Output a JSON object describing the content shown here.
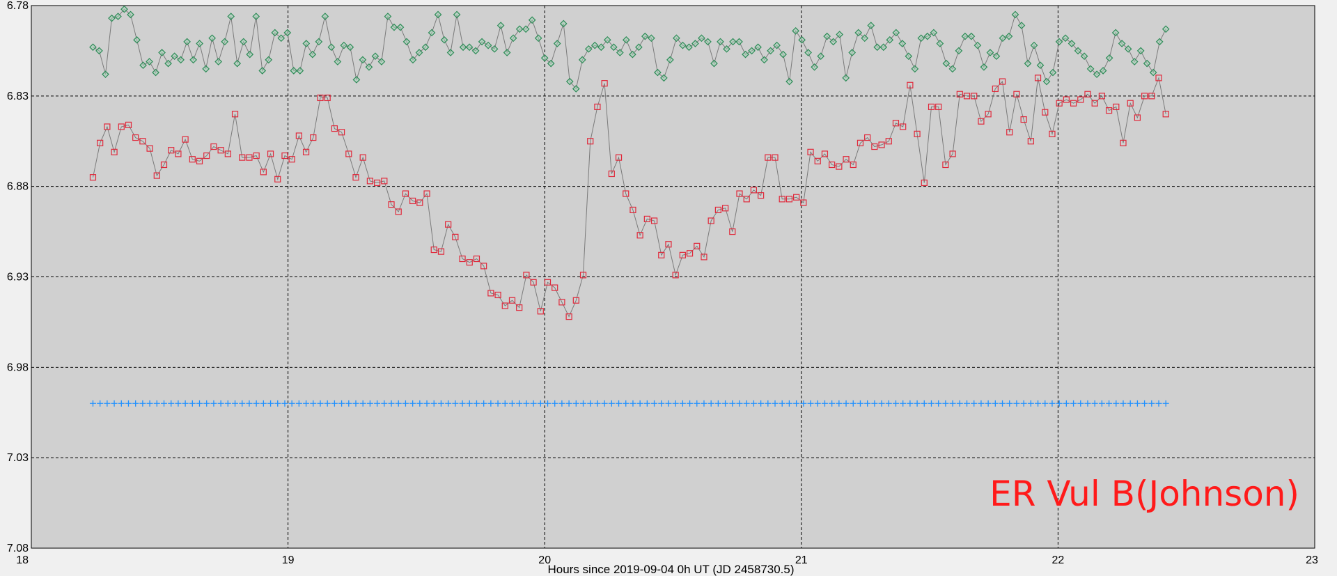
{
  "chart_data": {
    "type": "scatter",
    "title": "",
    "xlabel": "Hours since 2019-09-04 0h UT (JD 2458730.5)",
    "ylabel": "",
    "annotation": "ER Vul B(Johnson)",
    "xlim": [
      18,
      23
    ],
    "ylim": [
      6.78,
      7.08
    ],
    "y_inverted": true,
    "grid": true,
    "x_ticks": [
      "18",
      "19",
      "20",
      "21",
      "22",
      "23"
    ],
    "y_ticks": [
      "6.78",
      "6.83",
      "6.88",
      "6.93",
      "6.98",
      "7.03",
      "7.08"
    ],
    "colors": {
      "plot_background": "#d0d0d0",
      "frame_background": "#f0f0f0",
      "grid": "#000000",
      "connector": "#7a7a7a",
      "target_marker": "#e0283a",
      "check_marker": "#2e8b57",
      "baseline_marker": "#1e90ff",
      "annotation": "#ff1a1a"
    },
    "series": [
      {
        "marker": "diamond",
        "color": "#2e8b57",
        "connected": true,
        "x_range": [
          18.24,
          22.42
        ],
        "values": [
          6.803,
          6.805,
          6.818,
          6.787,
          6.786,
          6.782,
          6.785,
          6.799,
          6.813,
          6.811,
          6.817,
          6.806,
          6.812,
          6.808,
          6.81,
          6.8,
          6.81,
          6.801,
          6.815,
          6.798,
          6.811,
          6.8,
          6.786,
          6.812,
          6.8,
          6.807,
          6.786,
          6.816,
          6.81,
          6.795,
          6.798,
          6.795,
          6.816,
          6.816,
          6.801,
          6.807,
          6.8,
          6.786,
          6.803,
          6.811,
          6.802,
          6.803,
          6.821,
          6.81,
          6.814,
          6.808,
          6.811,
          6.786,
          6.792,
          6.792,
          6.8,
          6.81,
          6.806,
          6.803,
          6.795,
          6.785,
          6.799,
          6.806,
          6.785,
          6.803,
          6.803,
          6.805,
          6.8,
          6.802,
          6.804,
          6.791,
          6.806,
          6.798,
          6.793,
          6.793,
          6.788,
          6.798,
          6.809,
          6.812,
          6.801,
          6.79,
          6.822,
          6.826,
          6.81,
          6.804,
          6.802,
          6.803,
          6.799,
          6.803,
          6.806,
          6.799,
          6.807,
          6.803,
          6.797,
          6.798,
          6.817,
          6.82,
          6.81,
          6.798,
          6.802,
          6.803,
          6.801,
          6.798,
          6.8,
          6.812,
          6.8,
          6.804,
          6.8,
          6.8,
          6.807,
          6.805,
          6.803,
          6.81,
          6.805,
          6.802,
          6.807,
          6.822,
          6.794,
          6.799,
          6.806,
          6.814,
          6.808,
          6.797,
          6.8,
          6.796,
          6.82,
          6.806,
          6.795,
          6.798,
          6.791,
          6.803,
          6.803,
          6.799,
          6.795,
          6.801,
          6.808,
          6.815,
          6.798,
          6.797,
          6.795,
          6.801,
          6.812,
          6.815,
          6.805,
          6.797,
          6.797,
          6.802,
          6.814,
          6.806,
          6.808,
          6.798,
          6.797,
          6.785,
          6.791,
          6.812,
          6.802,
          6.813,
          6.822,
          6.817,
          6.8,
          6.798,
          6.801,
          6.805,
          6.808,
          6.815,
          6.818,
          6.816,
          6.809,
          6.795,
          6.801,
          6.804,
          6.811,
          6.805,
          6.812,
          6.817,
          6.8,
          6.793
        ]
      },
      {
        "marker": "square",
        "color": "#e0283a",
        "connected": true,
        "x_range": [
          18.24,
          22.42
        ],
        "values": [
          6.875,
          6.856,
          6.847,
          6.861,
          6.847,
          6.846,
          6.853,
          6.855,
          6.859,
          6.874,
          6.868,
          6.86,
          6.862,
          6.854,
          6.865,
          6.866,
          6.863,
          6.858,
          6.86,
          6.862,
          6.84,
          6.864,
          6.864,
          6.863,
          6.872,
          6.862,
          6.876,
          6.863,
          6.865,
          6.852,
          6.861,
          6.853,
          6.831,
          6.831,
          6.848,
          6.85,
          6.862,
          6.875,
          6.864,
          6.877,
          6.878,
          6.877,
          6.89,
          6.894,
          6.884,
          6.888,
          6.889,
          6.884,
          6.915,
          6.916,
          6.901,
          6.908,
          6.92,
          6.922,
          6.92,
          6.924,
          6.939,
          6.94,
          6.946,
          6.943,
          6.947,
          6.929,
          6.933,
          6.949,
          6.933,
          6.936,
          6.944,
          6.952,
          6.943,
          6.929,
          6.855,
          6.836,
          6.823,
          6.873,
          6.864,
          6.884,
          6.893,
          6.907,
          6.898,
          6.899,
          6.918,
          6.912,
          6.929,
          6.918,
          6.917,
          6.913,
          6.919,
          6.899,
          6.893,
          6.892,
          6.905,
          6.884,
          6.887,
          6.882,
          6.885,
          6.864,
          6.864,
          6.887,
          6.887,
          6.886,
          6.889,
          6.861,
          6.866,
          6.862,
          6.868,
          6.869,
          6.865,
          6.868,
          6.856,
          6.853,
          6.858,
          6.857,
          6.855,
          6.845,
          6.847,
          6.824,
          6.851,
          6.878,
          6.836,
          6.836,
          6.868,
          6.862,
          6.829,
          6.83,
          6.83,
          6.844,
          6.84,
          6.826,
          6.822,
          6.85,
          6.829,
          6.843,
          6.855,
          6.82,
          6.839,
          6.851,
          6.834,
          6.832,
          6.834,
          6.832,
          6.829,
          6.834,
          6.83,
          6.838,
          6.836,
          6.856,
          6.834,
          6.842,
          6.83,
          6.83,
          6.82,
          6.84
        ]
      },
      {
        "marker": "plus",
        "color": "#1e90ff",
        "connected": false,
        "x_range": [
          18.24,
          22.42
        ],
        "values": [
          7.0,
          7.0,
          7.0,
          7.0,
          7.0,
          7.0,
          7.0,
          7.0,
          7.0,
          7.0,
          7.0,
          7.0,
          7.0,
          7.0,
          7.0,
          7.0,
          7.0,
          7.0,
          7.0,
          7.0,
          7.0,
          7.0,
          7.0,
          7.0,
          7.0,
          7.0,
          7.0,
          7.0,
          7.0,
          7.0,
          7.0,
          7.0,
          7.0,
          7.0,
          7.0,
          7.0,
          7.0,
          7.0,
          7.0,
          7.0,
          7.0,
          7.0,
          7.0,
          7.0,
          7.0,
          7.0,
          7.0,
          7.0,
          7.0,
          7.0,
          7.0,
          7.0,
          7.0,
          7.0,
          7.0,
          7.0,
          7.0,
          7.0,
          7.0,
          7.0,
          7.0,
          7.0,
          7.0,
          7.0,
          7.0,
          7.0,
          7.0,
          7.0,
          7.0,
          7.0,
          7.0,
          7.0,
          7.0,
          7.0,
          7.0,
          7.0,
          7.0,
          7.0,
          7.0,
          7.0,
          7.0,
          7.0,
          7.0,
          7.0,
          7.0,
          7.0,
          7.0,
          7.0,
          7.0,
          7.0,
          7.0,
          7.0,
          7.0,
          7.0,
          7.0,
          7.0,
          7.0,
          7.0,
          7.0,
          7.0,
          7.0,
          7.0,
          7.0,
          7.0,
          7.0,
          7.0,
          7.0,
          7.0,
          7.0,
          7.0,
          7.0,
          7.0,
          7.0,
          7.0,
          7.0,
          7.0,
          7.0,
          7.0,
          7.0,
          7.0,
          7.0,
          7.0,
          7.0,
          7.0,
          7.0,
          7.0,
          7.0,
          7.0,
          7.0,
          7.0,
          7.0,
          7.0,
          7.0,
          7.0,
          7.0,
          7.0,
          7.0,
          7.0,
          7.0,
          7.0,
          7.0,
          7.0,
          7.0,
          7.0,
          7.0,
          7.0,
          7.0,
          7.0,
          7.0,
          7.0,
          7.0,
          7.0
        ]
      }
    ]
  }
}
